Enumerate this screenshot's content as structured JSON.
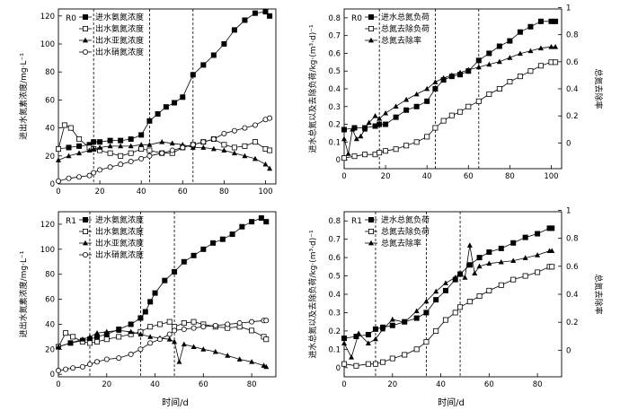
{
  "x_label": "时间/d",
  "chart_data": [
    {
      "type": "line",
      "panel_label": "R0",
      "ylabel": "进出水氮素浓度/mg·L⁻¹",
      "xlim": [
        0,
        105
      ],
      "ylim": [
        0,
        125
      ],
      "xticks": [
        0,
        20,
        40,
        60,
        80,
        100
      ],
      "yticks": [
        0,
        20,
        40,
        60,
        80,
        100,
        120
      ],
      "vlines": [
        17,
        44,
        65
      ],
      "legend_position": "top-left",
      "series": [
        {
          "name": "进水氨氮浓度",
          "marker": "filled-square",
          "x": [
            0,
            5,
            10,
            15,
            17,
            20,
            25,
            30,
            35,
            40,
            44,
            48,
            52,
            56,
            60,
            65,
            70,
            75,
            80,
            85,
            90,
            95,
            100,
            102
          ],
          "y": [
            25,
            26,
            27,
            28,
            30,
            30,
            31,
            31,
            32,
            35,
            45,
            50,
            55,
            58,
            62,
            78,
            85,
            92,
            100,
            110,
            117,
            122,
            123,
            120
          ]
        },
        {
          "name": "出水氨氮浓度",
          "marker": "open-square",
          "x": [
            0,
            3,
            6,
            10,
            15,
            17,
            20,
            25,
            30,
            35,
            40,
            44,
            50,
            55,
            60,
            65,
            70,
            75,
            80,
            85,
            90,
            95,
            100,
            102
          ],
          "y": [
            25,
            42,
            40,
            32,
            26,
            25,
            24,
            22,
            20,
            22,
            25,
            24,
            22,
            22,
            26,
            28,
            30,
            32,
            28,
            26,
            27,
            30,
            25,
            24
          ]
        },
        {
          "name": "出水亚氮浓度",
          "marker": "filled-triangle",
          "x": [
            0,
            5,
            10,
            15,
            17,
            20,
            25,
            30,
            35,
            40,
            44,
            50,
            55,
            60,
            65,
            70,
            75,
            80,
            85,
            90,
            95,
            100,
            102
          ],
          "y": [
            17,
            20,
            22,
            24,
            25,
            26,
            27,
            27,
            27,
            28,
            28,
            30,
            29,
            28,
            26,
            26,
            25,
            24,
            22,
            20,
            18,
            14,
            11
          ]
        },
        {
          "name": "出水硝氮浓度",
          "marker": "open-circle",
          "x": [
            0,
            5,
            10,
            15,
            17,
            20,
            25,
            30,
            35,
            40,
            44,
            50,
            55,
            60,
            65,
            70,
            75,
            80,
            85,
            90,
            95,
            100,
            102
          ],
          "y": [
            2,
            4,
            5,
            6,
            8,
            10,
            12,
            14,
            16,
            18,
            20,
            22,
            24,
            26,
            28,
            30,
            32,
            36,
            38,
            40,
            42,
            46,
            47
          ]
        }
      ]
    },
    {
      "type": "line",
      "panel_label": "R0",
      "ylabel": "进水总氮以及去除负荷/kg·(m³·d)⁻¹",
      "y2label": "总氮去除率",
      "xlim": [
        0,
        105
      ],
      "ylim": [
        -0.05,
        0.85
      ],
      "y2lim": [
        -0.19,
        0.99
      ],
      "xticks": [
        0,
        20,
        40,
        60,
        80,
        100
      ],
      "yticks": [
        0,
        0.1,
        0.2,
        0.3,
        0.4,
        0.5,
        0.6,
        0.7,
        0.8
      ],
      "y2ticks": [
        0,
        0.2,
        0.4,
        0.6,
        0.8,
        1.0
      ],
      "vlines": [
        17,
        44,
        65
      ],
      "legend_position": "top-left",
      "series": [
        {
          "name": "进水总氮负荷",
          "marker": "filled-square",
          "axis": "left",
          "x": [
            0,
            5,
            10,
            15,
            17,
            20,
            25,
            30,
            35,
            40,
            44,
            48,
            52,
            56,
            60,
            65,
            70,
            75,
            80,
            85,
            90,
            95,
            100,
            102
          ],
          "y": [
            0.17,
            0.18,
            0.18,
            0.19,
            0.2,
            0.2,
            0.24,
            0.28,
            0.3,
            0.33,
            0.4,
            0.45,
            0.47,
            0.48,
            0.5,
            0.56,
            0.6,
            0.64,
            0.67,
            0.72,
            0.75,
            0.78,
            0.78,
            0.78
          ]
        },
        {
          "name": "总氮去除负荷",
          "marker": "open-square",
          "axis": "left",
          "x": [
            0,
            5,
            10,
            15,
            17,
            20,
            25,
            30,
            35,
            40,
            44,
            48,
            52,
            56,
            60,
            65,
            70,
            75,
            80,
            85,
            90,
            95,
            100,
            102
          ],
          "y": [
            0.01,
            0.02,
            0.03,
            0.03,
            0.04,
            0.05,
            0.06,
            0.08,
            0.1,
            0.13,
            0.18,
            0.22,
            0.25,
            0.27,
            0.3,
            0.33,
            0.37,
            0.4,
            0.44,
            0.47,
            0.5,
            0.53,
            0.55,
            0.55
          ]
        },
        {
          "name": "总氮去除率",
          "marker": "filled-triangle",
          "axis": "right",
          "x": [
            0,
            2,
            4,
            6,
            8,
            10,
            12,
            15,
            17,
            20,
            25,
            30,
            35,
            40,
            44,
            48,
            52,
            56,
            60,
            65,
            70,
            75,
            80,
            85,
            90,
            95,
            100,
            102
          ],
          "y": [
            0.03,
            -0.08,
            0.1,
            0.03,
            0.05,
            0.1,
            0.15,
            0.2,
            0.18,
            0.22,
            0.27,
            0.32,
            0.36,
            0.4,
            0.45,
            0.48,
            0.5,
            0.52,
            0.54,
            0.56,
            0.58,
            0.6,
            0.63,
            0.66,
            0.68,
            0.7,
            0.71,
            0.71
          ]
        }
      ]
    },
    {
      "type": "line",
      "panel_label": "R1",
      "ylabel": "进出水氮素浓度/mg·L⁻¹",
      "xlim": [
        0,
        90
      ],
      "ylim": [
        -2,
        130
      ],
      "xticks": [
        0,
        20,
        40,
        60,
        80
      ],
      "yticks": [
        0,
        20,
        40,
        60,
        80,
        100,
        120
      ],
      "vlines": [
        13,
        34,
        48
      ],
      "legend_position": "top-left",
      "series": [
        {
          "name": "进水氨氮浓度",
          "marker": "filled-square",
          "x": [
            0,
            5,
            10,
            13,
            16,
            20,
            25,
            30,
            34,
            36,
            38,
            40,
            44,
            48,
            52,
            56,
            60,
            64,
            68,
            72,
            76,
            80,
            84,
            86
          ],
          "y": [
            22,
            25,
            27,
            28,
            30,
            32,
            36,
            40,
            45,
            50,
            58,
            65,
            75,
            82,
            90,
            95,
            100,
            105,
            108,
            112,
            118,
            122,
            125,
            122
          ]
        },
        {
          "name": "出水氨氮浓度",
          "marker": "open-square",
          "x": [
            0,
            3,
            6,
            10,
            13,
            16,
            20,
            25,
            30,
            34,
            38,
            42,
            46,
            48,
            52,
            56,
            60,
            65,
            70,
            75,
            80,
            85,
            86
          ],
          "y": [
            22,
            33,
            30,
            26,
            25,
            26,
            28,
            30,
            32,
            34,
            38,
            40,
            42,
            38,
            41,
            42,
            40,
            38,
            37,
            38,
            35,
            30,
            28
          ]
        },
        {
          "name": "出水亚氮浓度",
          "marker": "filled-triangle",
          "x": [
            0,
            5,
            10,
            13,
            16,
            20,
            25,
            30,
            34,
            38,
            42,
            46,
            48,
            50,
            52,
            56,
            60,
            65,
            70,
            75,
            80,
            85,
            86
          ],
          "y": [
            22,
            25,
            28,
            30,
            33,
            34,
            35,
            34,
            32,
            30,
            29,
            28,
            26,
            10,
            24,
            22,
            20,
            18,
            15,
            12,
            10,
            7,
            6
          ]
        },
        {
          "name": "出水硝氮浓度",
          "marker": "open-circle",
          "x": [
            0,
            3,
            6,
            10,
            13,
            16,
            20,
            25,
            30,
            34,
            38,
            42,
            46,
            48,
            52,
            56,
            60,
            65,
            70,
            75,
            80,
            85,
            86
          ],
          "y": [
            3,
            4,
            5,
            6,
            8,
            10,
            12,
            13,
            16,
            20,
            25,
            28,
            32,
            35,
            36,
            37,
            38,
            39,
            40,
            41,
            42,
            43,
            43
          ]
        }
      ]
    },
    {
      "type": "line",
      "panel_label": "R1",
      "ylabel": "进水总氮以及去除负荷/kg·(m³·d)⁻¹",
      "y2label": "总氮去除率",
      "xlim": [
        0,
        90
      ],
      "ylim": [
        -0.05,
        0.85
      ],
      "y2lim": [
        -0.19,
        0.99
      ],
      "xticks": [
        0,
        20,
        40,
        60,
        80
      ],
      "yticks": [
        0,
        0.1,
        0.2,
        0.3,
        0.4,
        0.5,
        0.6,
        0.7,
        0.8
      ],
      "y2ticks": [
        0,
        0.2,
        0.4,
        0.6,
        0.8,
        1.0
      ],
      "vlines": [
        13,
        34,
        48
      ],
      "legend_position": "top-left",
      "series": [
        {
          "name": "进水总氮负荷",
          "marker": "filled-square",
          "axis": "left",
          "x": [
            0,
            5,
            10,
            13,
            16,
            20,
            25,
            30,
            34,
            38,
            42,
            46,
            48,
            52,
            56,
            60,
            65,
            70,
            75,
            80,
            85,
            86
          ],
          "y": [
            0.16,
            0.17,
            0.18,
            0.21,
            0.22,
            0.23,
            0.25,
            0.27,
            0.3,
            0.37,
            0.42,
            0.48,
            0.51,
            0.56,
            0.6,
            0.63,
            0.65,
            0.68,
            0.71,
            0.73,
            0.76,
            0.76
          ]
        },
        {
          "name": "总氮去除负荷",
          "marker": "open-square",
          "axis": "left",
          "x": [
            0,
            5,
            10,
            13,
            16,
            20,
            25,
            30,
            34,
            38,
            42,
            46,
            48,
            52,
            56,
            60,
            65,
            70,
            75,
            80,
            85,
            86
          ],
          "y": [
            0.02,
            0.01,
            0.02,
            0.02,
            0.03,
            0.05,
            0.07,
            0.1,
            0.14,
            0.2,
            0.26,
            0.3,
            0.33,
            0.36,
            0.39,
            0.42,
            0.45,
            0.48,
            0.5,
            0.52,
            0.55,
            0.55
          ]
        },
        {
          "name": "总氮去除率",
          "marker": "filled-triangle",
          "axis": "right",
          "x": [
            0,
            3,
            6,
            10,
            13,
            16,
            20,
            25,
            30,
            34,
            38,
            42,
            46,
            48,
            50,
            52,
            54,
            56,
            60,
            65,
            70,
            75,
            80,
            85,
            86
          ],
          "y": [
            0.05,
            -0.05,
            0.12,
            0.05,
            0.08,
            0.15,
            0.22,
            0.2,
            0.28,
            0.35,
            0.42,
            0.48,
            0.52,
            0.55,
            0.52,
            0.75,
            0.55,
            0.6,
            0.62,
            0.63,
            0.64,
            0.66,
            0.68,
            0.71,
            0.71
          ]
        }
      ]
    }
  ]
}
